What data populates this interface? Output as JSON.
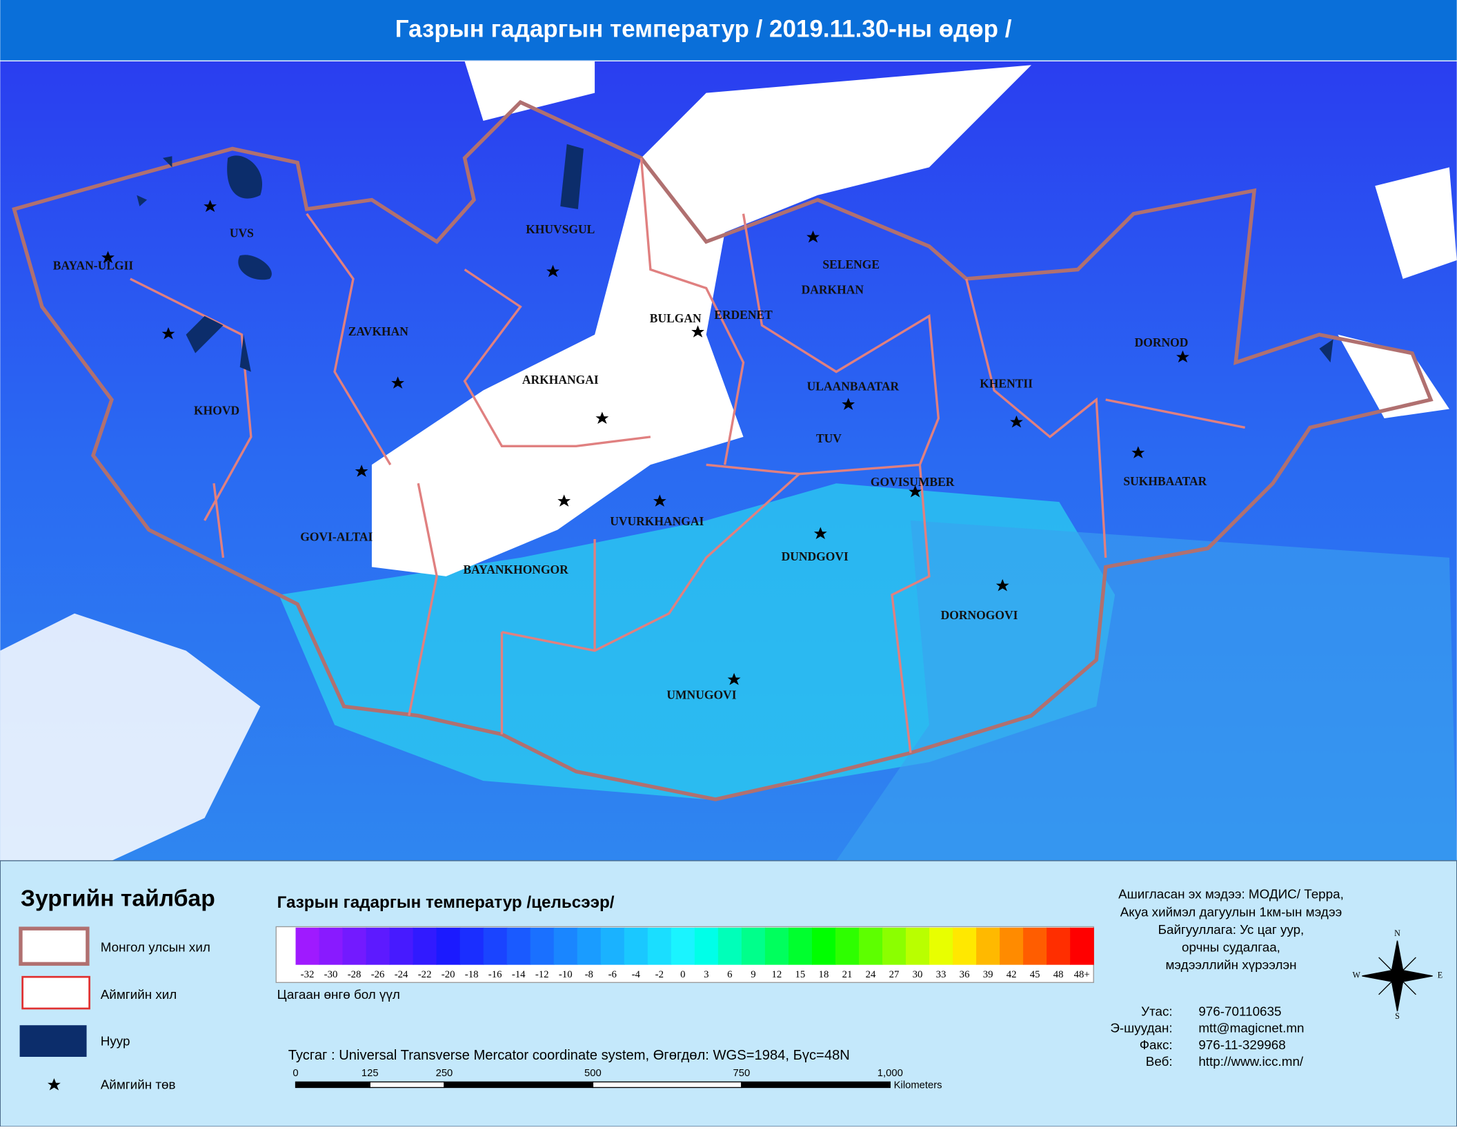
{
  "header": {
    "title": "Газрын гадаргын температур / 2019.11.30-ны өдөр /"
  },
  "map": {
    "provinces": [
      "BAYAN-ULGII",
      "UVS",
      "KHUVSGUL",
      "ZAVKHAN",
      "KHOVD",
      "ARKHANGAI",
      "BULGAN",
      "ERDENET",
      "SELENGE",
      "DARKHAN",
      "ULAANBAATAR",
      "TUV",
      "KHENTII",
      "DORNOD",
      "SUKHBAATAR",
      "GOVISUMBER",
      "GOVI-ALTAI",
      "UVURKHANGAI",
      "BAYANKHONGOR",
      "DUNDGOVI",
      "DORNOGOVI",
      "UMNUGOVI"
    ]
  },
  "legend": {
    "title": "Зургийн тайлбар",
    "items": [
      "Монгол улсын хил",
      "Аймгийн хил",
      "Нуур",
      "Аймгийн төв"
    ]
  },
  "colorbar": {
    "title": "Газрын гадаргын температур /цельсээр/",
    "labels": [
      "-32",
      "-30",
      "-28",
      "-26",
      "-24",
      "-22",
      "-20",
      "-18",
      "-16",
      "-14",
      "-12",
      "-10",
      "-8",
      "-6",
      "-4",
      "-2",
      "0",
      "3",
      "6",
      "9",
      "12",
      "15",
      "18",
      "21",
      "24",
      "27",
      "30",
      "33",
      "36",
      "39",
      "42",
      "45",
      "48",
      "48+"
    ],
    "note": "Цагаан өнгө бол үүл"
  },
  "projection": "Тусгаг : Universal Transverse Mercator coordinate system, Өгөгдөл: WGS=1984, Бүс=48N",
  "scale": {
    "labels": [
      "0",
      "125",
      "250",
      "500",
      "750",
      "1,000"
    ],
    "unit": "Kilometers"
  },
  "source": [
    "Ашигласан эх мэдээ: МОДИС/ Терра,",
    "Акуа хиймэл дагуулын 1км-ын мэдээ",
    "Байгууллага: Ус цаг уур,",
    "орчны судалгаа,",
    "мэдээллийн хүрээлэн"
  ],
  "contacts": [
    {
      "label": "Утас:",
      "value": "976-70110635"
    },
    {
      "label": "Э-шуудан:",
      "value": "mtt@magicnet.mn"
    },
    {
      "label": "Факс:",
      "value": "976-11-329968"
    },
    {
      "label": "Веб:",
      "value": "http://www.icc.mn/"
    }
  ],
  "compass": {
    "n": "N",
    "s": "S",
    "e": "E",
    "w": "W"
  }
}
